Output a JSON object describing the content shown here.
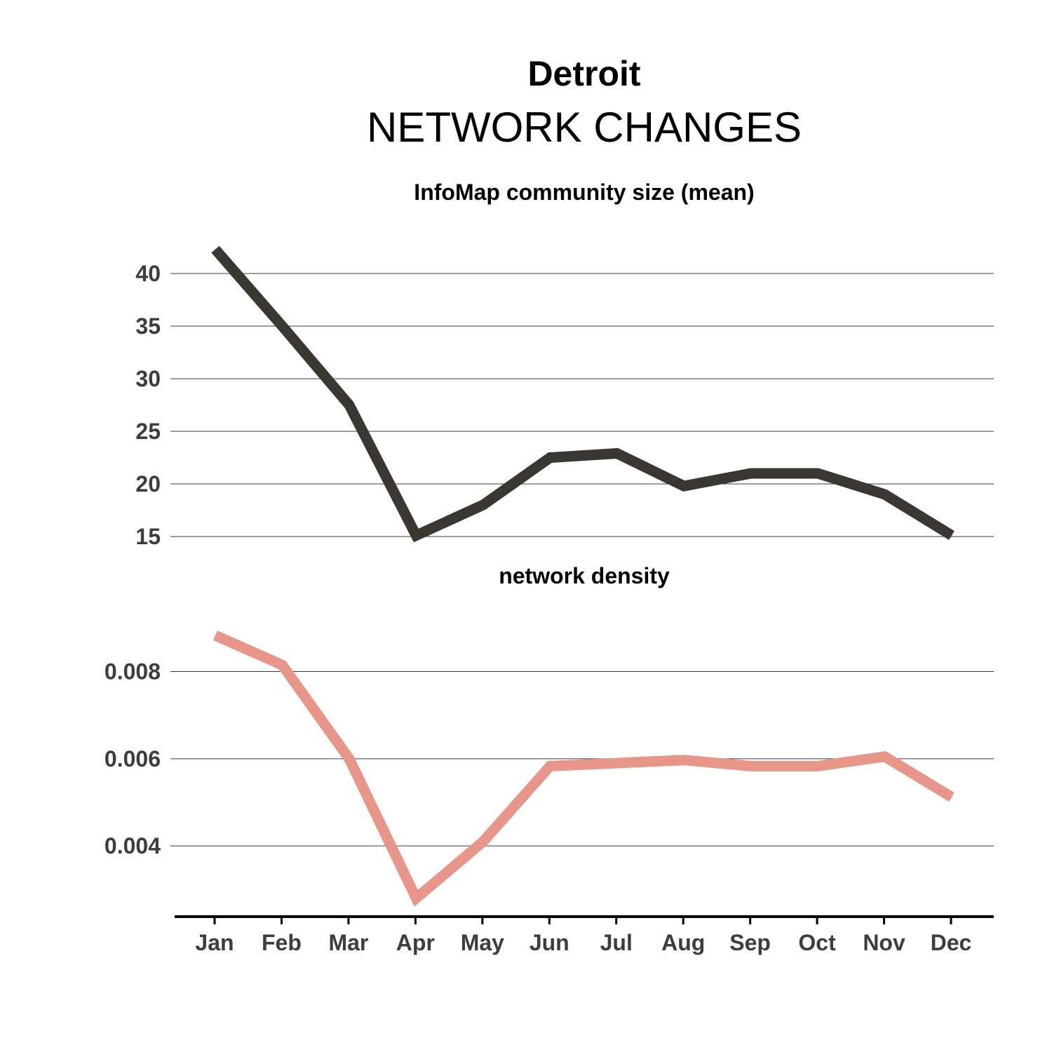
{
  "title": "Detroit",
  "subtitle": "NETWORK CHANGES",
  "chart_data": [
    {
      "type": "line",
      "title": "InfoMap community size (mean)",
      "categories": [
        "Jan",
        "Feb",
        "Mar",
        "Apr",
        "May",
        "Jun",
        "Jul",
        "Aug",
        "Sep",
        "Oct",
        "Nov",
        "Dec"
      ],
      "series": [
        {
          "values": [
            42.3,
            35.0,
            27.5,
            15.1,
            18.0,
            22.5,
            22.9,
            19.8,
            21.0,
            21.0,
            19.0,
            15.1
          ],
          "color": "#3a3630"
        }
      ],
      "ylim": [
        14.2,
        44.8
      ],
      "yticks": [
        "15",
        "20",
        "25",
        "30",
        "35",
        "40"
      ],
      "ytick_values": [
        15,
        20,
        25,
        30,
        35,
        40
      ],
      "grid": true
    },
    {
      "type": "line",
      "title": "network density",
      "categories": [
        "Jan",
        "Feb",
        "Mar",
        "Apr",
        "May",
        "Jun",
        "Jul",
        "Aug",
        "Sep",
        "Oct",
        "Nov",
        "Dec"
      ],
      "series": [
        {
          "values": [
            0.00883,
            0.00815,
            0.006,
            0.0028,
            0.0041,
            0.00583,
            0.0059,
            0.00597,
            0.00583,
            0.00583,
            0.00605,
            0.00512
          ],
          "color": "#e8968a"
        }
      ],
      "ylim": [
        0.00249,
        0.00965
      ],
      "yticks": [
        "0.004",
        "0.006",
        "0.008"
      ],
      "ytick_values": [
        0.004,
        0.006,
        0.008
      ],
      "grid": true,
      "xaxis": true
    }
  ]
}
